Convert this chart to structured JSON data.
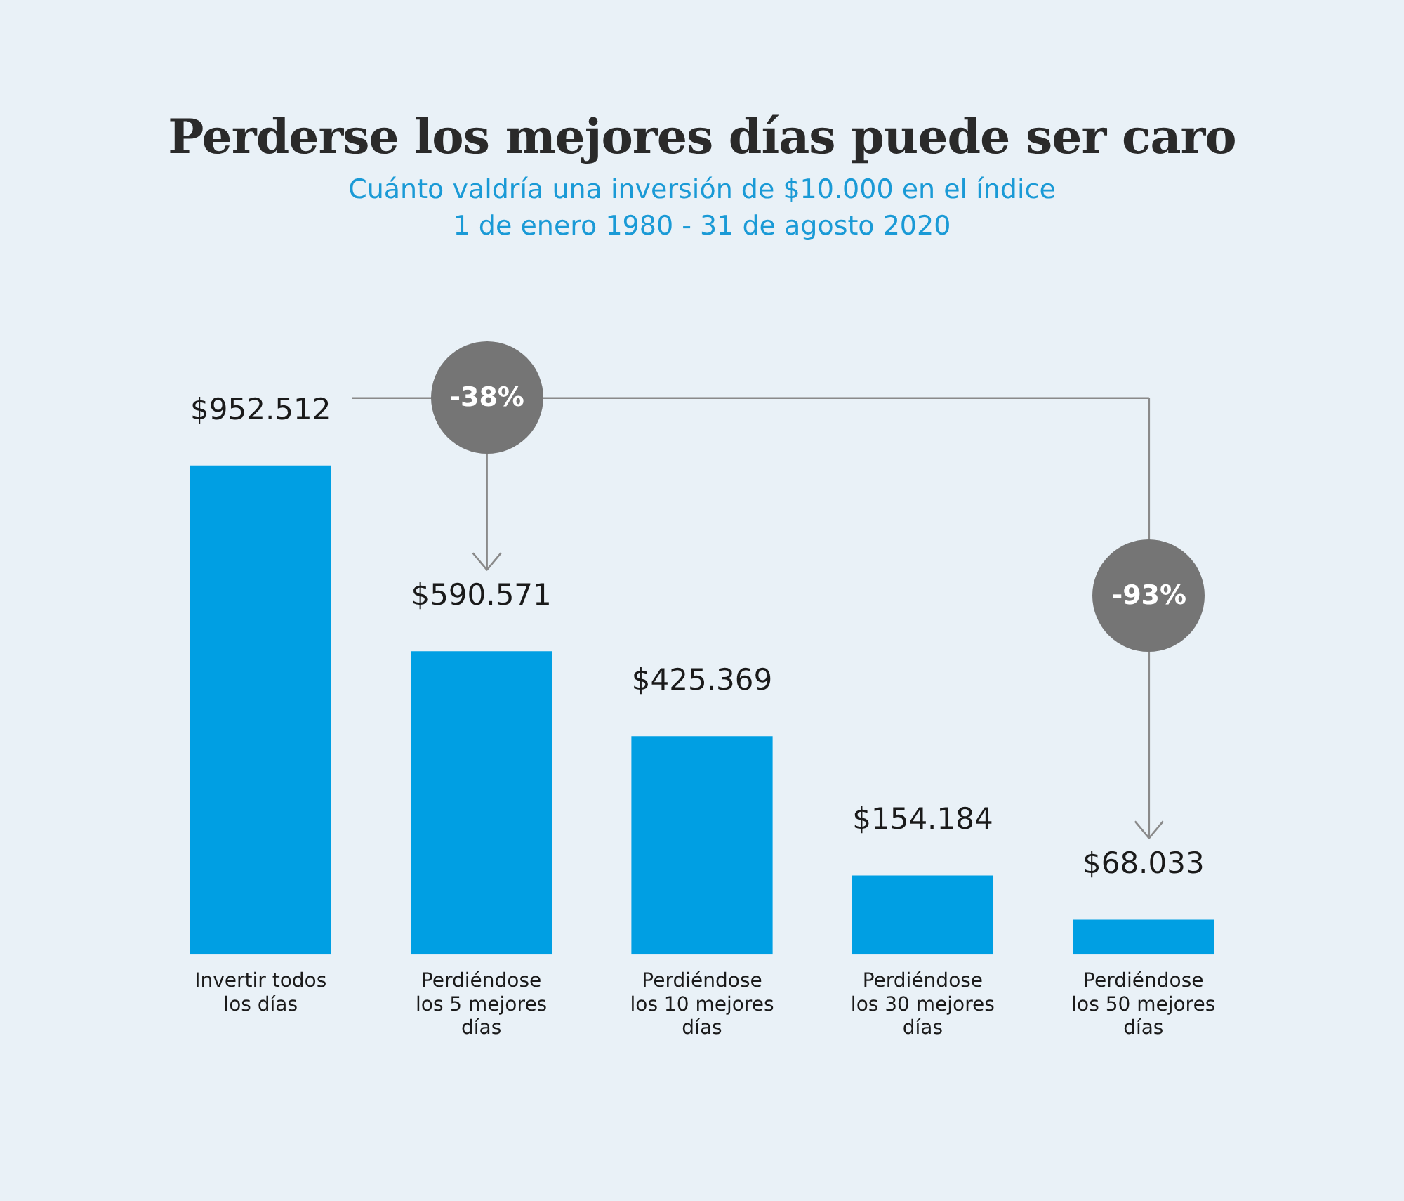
{
  "chart_data": {
    "type": "bar",
    "title": "Perderse los mejores días puede ser caro",
    "subtitle": "Cuánto valdría una inversión de $10.000 en el índice\n1 de enero 1980 - 31 de agosto 2020",
    "categories": [
      "Invertir todos los días",
      "Perdiéndose los 5 mejores días",
      "Perdiéndose los 10 mejores días",
      "Perdiéndose los 30 mejores días",
      "Perdiéndose los 50 mejores días"
    ],
    "values": [
      952512,
      590571,
      425369,
      154184,
      68033
    ],
    "value_labels": [
      "$952.512",
      "$590.571",
      "$425.369",
      "$154.184",
      "$68.033"
    ],
    "color": "#009fe3",
    "annotations": [
      "-38%",
      "-93%"
    ],
    "legend": false
  }
}
